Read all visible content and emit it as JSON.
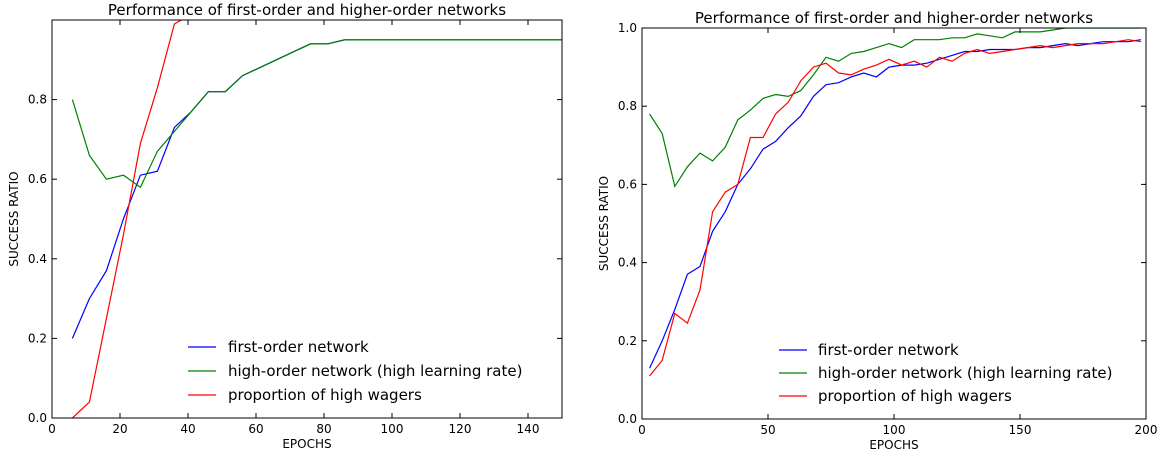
{
  "chart_data": [
    {
      "type": "line",
      "title": "Performance of first-order and higher-order networks",
      "xlabel": "EPOCHS",
      "ylabel": "SUCCESS RATIO",
      "xlim": [
        0,
        150
      ],
      "ylim": [
        0.0,
        1.0
      ],
      "xticks": [
        0,
        20,
        40,
        60,
        80,
        100,
        120,
        140
      ],
      "yticks": [
        0.0,
        0.2,
        0.4,
        0.6,
        0.8
      ],
      "ytick_labels": [
        "0.0",
        "0.2",
        "0.4",
        "0.6",
        "0.8"
      ],
      "grid": false,
      "legend_position": "lower-right",
      "series": [
        {
          "name": "first-order network",
          "color": "#0000ff",
          "x": [
            6,
            11,
            16,
            21,
            26,
            31,
            36,
            41,
            46,
            51,
            56,
            61,
            66,
            71,
            76,
            81,
            86,
            91,
            96,
            101,
            150
          ],
          "y": [
            0.2,
            0.3,
            0.37,
            0.5,
            0.61,
            0.62,
            0.73,
            0.77,
            0.82,
            0.82,
            0.86,
            0.88,
            0.9,
            0.92,
            0.94,
            0.94,
            0.95,
            0.95,
            0.95,
            0.95,
            0.95
          ]
        },
        {
          "name": "high-order network (high learning rate)",
          "color": "#008000",
          "x": [
            6,
            11,
            16,
            21,
            26,
            31,
            36,
            41,
            46,
            51,
            56,
            61,
            66,
            71,
            76,
            81,
            86,
            91,
            96,
            101,
            150
          ],
          "y": [
            0.8,
            0.66,
            0.6,
            0.61,
            0.58,
            0.67,
            0.72,
            0.77,
            0.82,
            0.82,
            0.86,
            0.88,
            0.9,
            0.92,
            0.94,
            0.94,
            0.95,
            0.95,
            0.95,
            0.95,
            0.95
          ]
        },
        {
          "name": "proportion of high wagers",
          "color": "#ff0000",
          "x": [
            6,
            11,
            16,
            21,
            26,
            31,
            36,
            38
          ],
          "y": [
            0.0,
            0.04,
            0.25,
            0.46,
            0.69,
            0.83,
            0.99,
            1.0
          ]
        }
      ]
    },
    {
      "type": "line",
      "title": "Performance of first-order and higher-order networks",
      "xlabel": "EPOCHS",
      "ylabel": "SUCCESS RATIO",
      "xlim": [
        0,
        200
      ],
      "ylim": [
        0.0,
        1.0
      ],
      "xticks": [
        0,
        50,
        100,
        150,
        200
      ],
      "yticks": [
        0.0,
        0.2,
        0.4,
        0.6,
        0.8,
        1.0
      ],
      "ytick_labels": [
        "0.0",
        "0.2",
        "0.4",
        "0.6",
        "0.8",
        "1.0"
      ],
      "grid": false,
      "legend_position": "lower-right",
      "series": [
        {
          "name": "first-order network",
          "color": "#0000ff",
          "x": [
            3,
            8,
            13,
            18,
            23,
            28,
            33,
            38,
            43,
            48,
            53,
            58,
            63,
            68,
            73,
            78,
            83,
            88,
            93,
            98,
            103,
            108,
            113,
            118,
            123,
            128,
            133,
            138,
            143,
            148,
            153,
            158,
            163,
            168,
            173,
            178,
            183,
            188,
            193,
            198
          ],
          "y": [
            0.13,
            0.2,
            0.28,
            0.37,
            0.39,
            0.48,
            0.53,
            0.6,
            0.64,
            0.69,
            0.71,
            0.745,
            0.775,
            0.825,
            0.855,
            0.86,
            0.875,
            0.885,
            0.875,
            0.9,
            0.905,
            0.905,
            0.91,
            0.92,
            0.93,
            0.94,
            0.94,
            0.945,
            0.945,
            0.945,
            0.95,
            0.95,
            0.955,
            0.96,
            0.955,
            0.96,
            0.965,
            0.965,
            0.965,
            0.97
          ]
        },
        {
          "name": "high-order network (high learning rate)",
          "color": "#008000",
          "x": [
            3,
            8,
            13,
            18,
            23,
            28,
            33,
            38,
            43,
            48,
            53,
            58,
            63,
            68,
            73,
            78,
            83,
            88,
            93,
            98,
            103,
            108,
            113,
            118,
            123,
            128,
            133,
            138,
            143,
            148,
            153,
            158,
            163,
            168,
            173,
            178,
            183,
            188,
            193,
            198
          ],
          "y": [
            0.78,
            0.73,
            0.595,
            0.645,
            0.68,
            0.66,
            0.695,
            0.765,
            0.79,
            0.82,
            0.83,
            0.825,
            0.84,
            0.88,
            0.925,
            0.915,
            0.935,
            0.94,
            0.95,
            0.96,
            0.95,
            0.97,
            0.97,
            0.97,
            0.975,
            0.975,
            0.985,
            0.98,
            0.975,
            0.99,
            0.99,
            0.99,
            0.995,
            1.0,
            1.0,
            1.0,
            1.0,
            1.0,
            1.0,
            1.0
          ]
        },
        {
          "name": "proportion of high wagers",
          "color": "#ff0000",
          "x": [
            3,
            8,
            13,
            18,
            23,
            28,
            33,
            38,
            43,
            48,
            53,
            58,
            63,
            68,
            73,
            78,
            83,
            88,
            93,
            98,
            103,
            108,
            113,
            118,
            123,
            128,
            133,
            138,
            143,
            148,
            153,
            158,
            163,
            168,
            173,
            178,
            183,
            188,
            193,
            198
          ],
          "y": [
            0.11,
            0.15,
            0.27,
            0.245,
            0.33,
            0.53,
            0.58,
            0.6,
            0.72,
            0.72,
            0.78,
            0.81,
            0.865,
            0.9,
            0.91,
            0.885,
            0.88,
            0.895,
            0.905,
            0.92,
            0.905,
            0.915,
            0.9,
            0.925,
            0.915,
            0.935,
            0.945,
            0.935,
            0.94,
            0.945,
            0.95,
            0.955,
            0.95,
            0.955,
            0.96,
            0.96,
            0.96,
            0.965,
            0.97,
            0.965
          ]
        }
      ]
    }
  ]
}
